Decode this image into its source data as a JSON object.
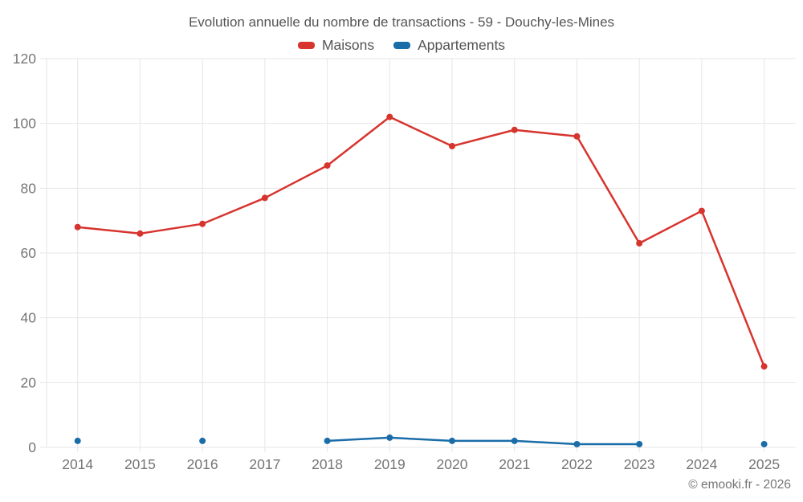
{
  "chart_data": {
    "type": "line",
    "title": "Evolution annuelle du nombre de transactions - 59 - Douchy-les-Mines",
    "categories": [
      "2014",
      "2015",
      "2016",
      "2017",
      "2018",
      "2019",
      "2020",
      "2021",
      "2022",
      "2023",
      "2024",
      "2025"
    ],
    "series": [
      {
        "name": "Maisons",
        "color": "#d7342e",
        "values": [
          68,
          66,
          69,
          77,
          87,
          102,
          93,
          98,
          96,
          63,
          73,
          25
        ]
      },
      {
        "name": "Appartements",
        "color": "#1a6da8",
        "values": [
          2,
          null,
          2,
          null,
          2,
          3,
          2,
          2,
          1,
          1,
          null,
          1
        ]
      }
    ],
    "xlabel": "",
    "ylabel": "",
    "ylim": [
      0,
      120
    ],
    "yticks": [
      0,
      20,
      40,
      60,
      80,
      100,
      120
    ],
    "grid": true,
    "legend_position": "top",
    "colors": {
      "grid": "#e6e6e6",
      "axis_text": "#757575",
      "title_text": "#545454"
    }
  },
  "footer": {
    "copyright": "© emooki.fr - 2026"
  }
}
